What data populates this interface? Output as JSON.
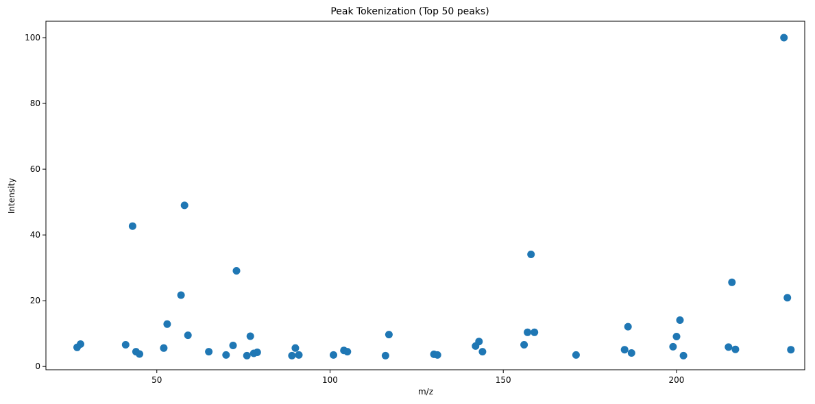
{
  "chart_data": {
    "type": "scatter",
    "title": "Peak Tokenization (Top 50 peaks)",
    "xlabel": "m/z",
    "ylabel": "Intensity",
    "xlim": [
      18,
      237
    ],
    "ylim": [
      -1,
      105
    ],
    "xticks": [
      50,
      100,
      150,
      200
    ],
    "yticks": [
      0,
      20,
      40,
      60,
      80,
      100
    ],
    "grid": false,
    "marker_color": "#1f77b4",
    "series": [
      {
        "points": [
          [
            27,
            5.8
          ],
          [
            28,
            6.8
          ],
          [
            41,
            6.6
          ],
          [
            43,
            42.7
          ],
          [
            44,
            4.5
          ],
          [
            45,
            3.8
          ],
          [
            52,
            5.6
          ],
          [
            53,
            12.9
          ],
          [
            57,
            21.7
          ],
          [
            58,
            49.0
          ],
          [
            59,
            9.5
          ],
          [
            65,
            4.5
          ],
          [
            70,
            3.5
          ],
          [
            72,
            6.4
          ],
          [
            73,
            29.1
          ],
          [
            76,
            3.3
          ],
          [
            77,
            9.2
          ],
          [
            78,
            4.0
          ],
          [
            79,
            4.3
          ],
          [
            89,
            3.3
          ],
          [
            90,
            5.6
          ],
          [
            91,
            3.5
          ],
          [
            101,
            3.5
          ],
          [
            104,
            4.9
          ],
          [
            105,
            4.5
          ],
          [
            116,
            3.3
          ],
          [
            117,
            9.7
          ],
          [
            130,
            3.7
          ],
          [
            131,
            3.5
          ],
          [
            142,
            6.2
          ],
          [
            143,
            7.6
          ],
          [
            144,
            4.5
          ],
          [
            156,
            6.6
          ],
          [
            157,
            10.4
          ],
          [
            158,
            34.1
          ],
          [
            159,
            10.4
          ],
          [
            171,
            3.5
          ],
          [
            185,
            5.1
          ],
          [
            186,
            12.1
          ],
          [
            187,
            4.1
          ],
          [
            199,
            6.0
          ],
          [
            200,
            9.1
          ],
          [
            201,
            14.1
          ],
          [
            202,
            3.3
          ],
          [
            215,
            5.9
          ],
          [
            216,
            25.6
          ],
          [
            217,
            5.2
          ],
          [
            231,
            100.0
          ],
          [
            232,
            20.9
          ],
          [
            233,
            5.1
          ]
        ]
      }
    ]
  }
}
